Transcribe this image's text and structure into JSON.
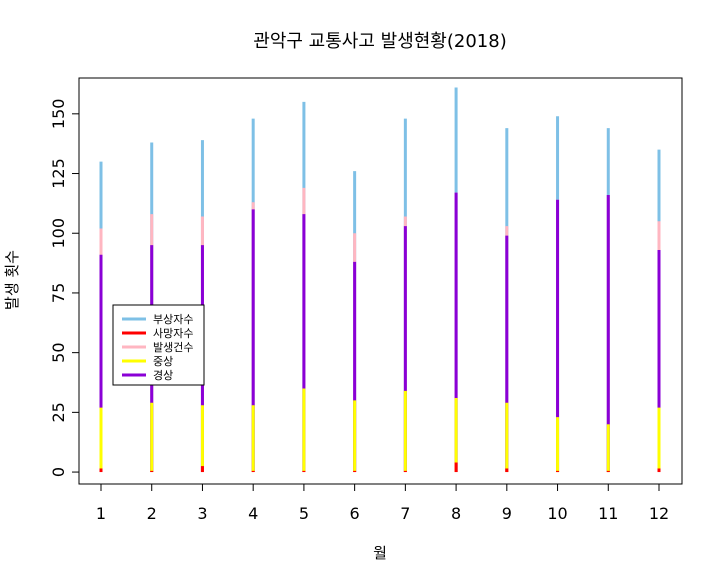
{
  "chart_data": {
    "type": "bar",
    "title": "관악구 교통사고 발생현황(2018)",
    "xlabel": "월",
    "ylabel": "발생 횟수",
    "categories": [
      "1",
      "2",
      "3",
      "4",
      "5",
      "6",
      "7",
      "8",
      "9",
      "10",
      "11",
      "12"
    ],
    "ylim": [
      -5,
      165
    ],
    "yticks": [
      0,
      25,
      50,
      75,
      100,
      125,
      150
    ],
    "grid": false,
    "legend_position": "left-middle",
    "series": [
      {
        "name": "부상자수",
        "color": "#7ec0e6",
        "values": [
          130,
          138,
          139,
          148,
          155,
          126,
          148,
          161,
          144,
          149,
          144,
          135
        ]
      },
      {
        "name": "사망자수",
        "color": "#ff0000",
        "values": [
          1.5,
          0.5,
          2.5,
          0.5,
          0.5,
          0.5,
          0.5,
          4,
          1.5,
          0.5,
          0.5,
          1.5
        ]
      },
      {
        "name": "발생건수",
        "color": "#ffb6c1",
        "values": [
          102,
          108,
          107,
          113,
          119,
          100,
          107,
          117,
          103,
          114,
          116,
          105
        ]
      },
      {
        "name": "중상",
        "color": "#ffff00",
        "values": [
          27,
          29,
          28,
          28,
          35,
          30,
          34,
          31,
          29,
          23,
          20,
          27
        ]
      },
      {
        "name": "경상",
        "color": "#8a00d6",
        "values": [
          91,
          95,
          95,
          110,
          108,
          88,
          103,
          117,
          99,
          114,
          116,
          93
        ]
      }
    ],
    "draw_order": [
      0,
      2,
      4,
      3,
      1
    ]
  }
}
